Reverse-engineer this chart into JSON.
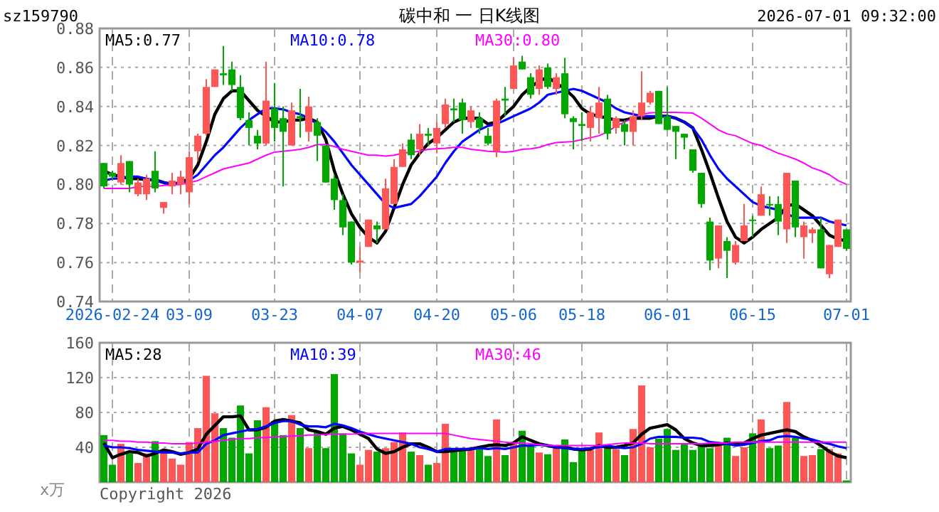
{
  "chart_data": [
    {
      "type": "candlestick",
      "title": "碳中和 一 日K线图",
      "subtitle": "sz159790",
      "annotations": [
        "2026-07-01 09:32:00"
      ],
      "categories": [
        null,
        "2026-02-24",
        null,
        null,
        null,
        null,
        null,
        null,
        null,
        null,
        "03-09",
        null,
        null,
        null,
        null,
        null,
        null,
        null,
        null,
        null,
        "03-23",
        null,
        null,
        null,
        null,
        null,
        null,
        null,
        null,
        null,
        "04-07",
        null,
        null,
        null,
        null,
        null,
        null,
        null,
        null,
        "04-20",
        null,
        null,
        null,
        null,
        null,
        null,
        null,
        null,
        "05-06",
        null,
        null,
        null,
        null,
        null,
        null,
        null,
        "05-18",
        null,
        null,
        null,
        null,
        null,
        null,
        null,
        null,
        null,
        "06-01",
        null,
        null,
        null,
        null,
        null,
        null,
        null,
        null,
        null,
        "06-15",
        null,
        null,
        null,
        null,
        null,
        null,
        null,
        null,
        null,
        null,
        "07-01"
      ],
      "ohlc": [
        [
          0.811,
          0.811,
          0.798,
          0.799
        ],
        [
          0.806,
          0.807,
          0.802,
          0.804
        ],
        [
          0.801,
          0.815,
          0.8,
          0.811
        ],
        [
          0.812,
          0.812,
          0.796,
          0.8
        ],
        [
          0.795,
          0.803,
          0.794,
          0.801
        ],
        [
          0.795,
          0.805,
          0.792,
          0.803
        ],
        [
          0.807,
          0.817,
          0.796,
          0.798
        ],
        [
          0.788,
          0.791,
          0.785,
          0.791
        ],
        [
          0.799,
          0.806,
          0.795,
          0.802
        ],
        [
          0.8,
          0.807,
          0.795,
          0.804
        ],
        [
          0.796,
          0.817,
          0.79,
          0.814
        ],
        [
          0.817,
          0.826,
          0.812,
          0.825
        ],
        [
          0.826,
          0.854,
          0.825,
          0.85
        ],
        [
          0.85,
          0.859,
          0.85,
          0.859
        ],
        [
          0.857,
          0.871,
          0.851,
          0.856
        ],
        [
          0.859,
          0.863,
          0.848,
          0.851
        ],
        [
          0.85,
          0.856,
          0.833,
          0.834
        ],
        [
          0.833,
          0.837,
          0.82,
          0.829
        ],
        [
          0.825,
          0.828,
          0.818,
          0.821
        ],
        [
          0.821,
          0.863,
          0.82,
          0.843
        ],
        [
          0.839,
          0.852,
          0.822,
          0.829
        ],
        [
          0.834,
          0.84,
          0.799,
          0.827
        ],
        [
          0.82,
          0.842,
          0.82,
          0.838
        ],
        [
          0.835,
          0.849,
          0.824,
          0.834
        ],
        [
          0.827,
          0.845,
          0.822,
          0.84
        ],
        [
          0.832,
          0.834,
          0.812,
          0.825
        ],
        [
          0.82,
          0.82,
          0.801,
          0.801
        ],
        [
          0.803,
          0.805,
          0.787,
          0.792
        ],
        [
          0.792,
          0.795,
          0.774,
          0.778
        ],
        [
          0.781,
          0.781,
          0.759,
          0.76
        ],
        [
          0.76,
          0.768,
          0.755,
          0.761
        ],
        [
          0.768,
          0.782,
          0.768,
          0.782
        ],
        [
          0.779,
          0.781,
          0.77,
          0.777
        ],
        [
          0.777,
          0.803,
          0.777,
          0.798
        ],
        [
          0.79,
          0.813,
          0.79,
          0.809
        ],
        [
          0.809,
          0.821,
          0.809,
          0.818
        ],
        [
          0.823,
          0.826,
          0.813,
          0.815
        ],
        [
          0.818,
          0.831,
          0.815,
          0.826
        ],
        [
          0.826,
          0.829,
          0.82,
          0.825
        ],
        [
          0.821,
          0.832,
          0.816,
          0.829
        ],
        [
          0.831,
          0.844,
          0.829,
          0.841
        ],
        [
          0.839,
          0.844,
          0.832,
          0.838
        ],
        [
          0.842,
          0.844,
          0.826,
          0.833
        ],
        [
          0.832,
          0.84,
          0.829,
          0.838
        ],
        [
          0.834,
          0.837,
          0.826,
          0.829
        ],
        [
          0.825,
          0.829,
          0.82,
          0.821
        ],
        [
          0.817,
          0.844,
          0.814,
          0.843
        ],
        [
          0.844,
          0.85,
          0.835,
          0.843
        ],
        [
          0.849,
          0.865,
          0.849,
          0.861
        ],
        [
          0.863,
          0.866,
          0.859,
          0.859
        ],
        [
          0.855,
          0.857,
          0.844,
          0.846
        ],
        [
          0.849,
          0.861,
          0.846,
          0.859
        ],
        [
          0.86,
          0.862,
          0.849,
          0.85
        ],
        [
          0.849,
          0.857,
          0.846,
          0.855
        ],
        [
          0.857,
          0.865,
          0.834,
          0.836
        ],
        [
          0.834,
          0.835,
          0.818,
          0.832
        ],
        [
          0.831,
          0.837,
          0.822,
          0.83
        ],
        [
          0.829,
          0.84,
          0.822,
          0.837
        ],
        [
          0.834,
          0.85,
          0.826,
          0.842
        ],
        [
          0.844,
          0.846,
          0.823,
          0.826
        ],
        [
          0.829,
          0.835,
          0.826,
          0.834
        ],
        [
          0.831,
          0.833,
          0.82,
          0.827
        ],
        [
          0.827,
          0.838,
          0.82,
          0.835
        ],
        [
          0.835,
          0.858,
          0.833,
          0.842
        ],
        [
          0.842,
          0.848,
          0.841,
          0.847
        ],
        [
          0.848,
          0.848,
          0.831,
          0.831
        ],
        [
          0.835,
          0.85,
          0.828,
          0.828
        ],
        [
          0.83,
          0.83,
          0.813,
          0.827
        ],
        [
          0.826,
          0.826,
          0.818,
          0.824
        ],
        [
          0.818,
          0.818,
          0.806,
          0.807
        ],
        [
          0.806,
          0.806,
          0.788,
          0.79
        ],
        [
          0.781,
          0.783,
          0.756,
          0.761
        ],
        [
          0.762,
          0.779,
          0.757,
          0.779
        ],
        [
          0.771,
          0.773,
          0.752,
          0.766
        ],
        [
          0.76,
          0.771,
          0.759,
          0.769
        ],
        [
          0.771,
          0.79,
          0.771,
          0.779
        ],
        [
          0.782,
          0.784,
          0.773,
          0.782
        ],
        [
          0.784,
          0.799,
          0.784,
          0.795
        ],
        [
          0.79,
          0.794,
          0.784,
          0.79
        ],
        [
          0.79,
          0.794,
          0.774,
          0.781
        ],
        [
          0.777,
          0.806,
          0.77,
          0.806
        ],
        [
          0.802,
          0.802,
          0.773,
          0.778
        ],
        [
          0.773,
          0.781,
          0.762,
          0.779
        ],
        [
          0.775,
          0.778,
          0.77,
          0.777
        ],
        [
          0.777,
          0.783,
          0.757,
          0.757
        ],
        [
          0.754,
          0.769,
          0.752,
          0.769
        ],
        [
          0.768,
          0.782,
          0.768,
          0.782
        ],
        [
          0.777,
          0.777,
          0.766,
          0.767
        ]
      ],
      "colors": [
        "#00a800",
        "#00a800",
        "#ff5555",
        "#00a800",
        "#ff5555",
        "#ff5555",
        "#00a800",
        "#ff5555",
        "#ff5555",
        "#ff5555",
        "#ff5555",
        "#ff5555",
        "#ff5555",
        "#ff5555",
        "#00a800",
        "#00a800",
        "#00a800",
        "#00a800",
        "#00a800",
        "#ff5555",
        "#00a800",
        "#00a800",
        "#ff5555",
        "#00a800",
        "#ff5555",
        "#00a800",
        "#00a800",
        "#00a800",
        "#00a800",
        "#00a800",
        "#ff5555",
        "#ff5555",
        "#00a800",
        "#ff5555",
        "#ff5555",
        "#ff5555",
        "#00a800",
        "#ff5555",
        "#00a800",
        "#ff5555",
        "#ff5555",
        "#00a800",
        "#00a800",
        "#ff5555",
        "#00a800",
        "#00a800",
        "#ff5555",
        "#00a800",
        "#ff5555",
        "#00a800",
        "#00a800",
        "#ff5555",
        "#00a800",
        "#ff5555",
        "#00a800",
        "#00a800",
        "#00a800",
        "#ff5555",
        "#ff5555",
        "#00a800",
        "#ff5555",
        "#00a800",
        "#ff5555",
        "#ff5555",
        "#ff5555",
        "#00a800",
        "#00a800",
        "#00a800",
        "#00a800",
        "#00a800",
        "#00a800",
        "#00a800",
        "#ff5555",
        "#00a800",
        "#ff5555",
        "#ff5555",
        "#00a800",
        "#ff5555",
        "#00a800",
        "#00a800",
        "#ff5555",
        "#00a800",
        "#ff5555",
        "#ff5555",
        "#00a800",
        "#ff5555",
        "#ff5555",
        "#00a800"
      ],
      "series": [
        {
          "name": "MA5:0.77",
          "color": "#000000",
          "type": "line",
          "values": [
            0.807,
            0.805,
            0.804,
            0.803,
            0.803,
            0.8025,
            0.8024,
            0.801,
            0.8,
            0.801,
            0.803,
            0.81,
            0.822,
            0.836,
            0.844,
            0.848,
            0.848,
            0.843,
            0.838,
            0.835,
            0.832,
            0.832,
            0.833,
            0.833,
            0.834,
            0.832,
            0.823,
            0.807,
            0.795,
            0.785,
            0.778,
            0.773,
            0.77,
            0.776,
            0.788,
            0.8,
            0.81,
            0.816,
            0.821,
            0.824,
            0.828,
            0.832,
            0.834,
            0.834,
            0.834,
            0.831,
            0.832,
            0.836,
            0.84,
            0.846,
            0.85,
            0.853,
            0.855,
            0.852,
            0.849,
            0.845,
            0.839,
            0.836,
            0.835,
            0.834,
            0.833,
            0.833,
            0.834,
            0.834,
            0.834,
            0.835,
            0.835,
            0.834,
            0.832,
            0.829,
            0.818,
            0.806,
            0.793,
            0.781,
            0.773,
            0.77,
            0.773,
            0.777,
            0.78,
            0.783,
            0.789,
            0.79,
            0.787,
            0.784,
            0.779,
            0.774,
            0.772,
            0.771
          ]
        },
        {
          "name": "MA10:0.78",
          "color": "#0000ff",
          "type": "line",
          "values": [
            0.802,
            0.803,
            0.803,
            0.804,
            0.804,
            0.803,
            0.802,
            0.801,
            0.8005,
            0.801,
            0.802,
            0.805,
            0.81,
            0.815,
            0.819,
            0.824,
            0.829,
            0.833,
            0.836,
            0.839,
            0.839,
            0.8385,
            0.837,
            0.836,
            0.834,
            0.831,
            0.827,
            0.822,
            0.816,
            0.81,
            0.805,
            0.8,
            0.795,
            0.79,
            0.788,
            0.789,
            0.79,
            0.794,
            0.799,
            0.804,
            0.811,
            0.817,
            0.822,
            0.825,
            0.828,
            0.83,
            0.831,
            0.833,
            0.835,
            0.837,
            0.839,
            0.842,
            0.846,
            0.847,
            0.848,
            0.849,
            0.848,
            0.846,
            0.844,
            0.842,
            0.839,
            0.837,
            0.836,
            0.835,
            0.835,
            0.835,
            0.835,
            0.834,
            0.832,
            0.829,
            0.823,
            0.815,
            0.808,
            0.803,
            0.799,
            0.795,
            0.791,
            0.789,
            0.788,
            0.787,
            0.785,
            0.783,
            0.783,
            0.783,
            0.783,
            0.781,
            0.78,
            0.779
          ]
        },
        {
          "name": "MA30:0.80",
          "color": "#ff00ff",
          "type": "line",
          "values": [
            0.798,
            0.798,
            0.798,
            0.798,
            0.799,
            0.799,
            0.799,
            0.7995,
            0.7998,
            0.8,
            0.801,
            0.802,
            0.804,
            0.806,
            0.808,
            0.809,
            0.81,
            0.811,
            0.813,
            0.815,
            0.8166,
            0.817,
            0.8175,
            0.818,
            0.819,
            0.8205,
            0.8205,
            0.8195,
            0.818,
            0.817,
            0.816,
            0.815,
            0.815,
            0.8146,
            0.815,
            0.816,
            0.8166,
            0.817,
            0.818,
            0.8183,
            0.8186,
            0.819,
            0.819,
            0.818,
            0.8176,
            0.817,
            0.8168,
            0.8166,
            0.817,
            0.818,
            0.8183,
            0.819,
            0.8205,
            0.8215,
            0.8218,
            0.822,
            0.823,
            0.824,
            0.825,
            0.827,
            0.83,
            0.832,
            0.834,
            0.836,
            0.8367,
            0.837,
            0.837,
            0.837,
            0.8368,
            0.8366,
            0.834,
            0.831,
            0.828,
            0.826,
            0.825,
            0.823,
            0.821,
            0.82,
            0.818,
            0.816,
            0.8146,
            0.813,
            0.811,
            0.8085,
            0.807,
            0.805,
            0.802,
            0.8
          ]
        }
      ],
      "ylim": [
        0.74,
        0.88
      ],
      "yticks": [
        0.74,
        0.76,
        0.78,
        {
          "value": 0.8,
          "label": "0.80"
        },
        0.82,
        0.84,
        0.86,
        0.88
      ],
      "grid": true,
      "legend": "top"
    },
    {
      "type": "bar",
      "ylabel": "x万",
      "annotations": [
        "Copyright 2026"
      ],
      "categories": [
        null,
        null,
        null,
        null,
        null,
        null,
        null,
        null,
        null,
        null,
        null,
        null,
        null,
        null,
        null,
        null,
        null,
        null,
        null,
        null,
        null,
        null,
        null,
        null,
        null,
        null,
        null,
        null,
        null,
        null,
        null,
        null,
        null,
        null,
        null,
        null,
        null,
        null,
        null,
        null,
        null,
        null,
        null,
        null,
        null,
        null,
        null,
        null,
        null,
        null,
        null,
        null,
        null,
        null,
        null,
        null,
        null,
        null,
        null,
        null,
        null,
        null,
        null,
        null,
        null,
        null,
        null,
        null,
        null,
        null,
        null,
        null,
        null,
        null,
        null,
        null,
        null,
        null,
        null,
        null,
        null,
        null,
        null,
        null,
        null,
        null,
        null,
        null
      ],
      "values": [
        54,
        20,
        44,
        33,
        22,
        33,
        47,
        37,
        27,
        20,
        46,
        62,
        122,
        79,
        62,
        51,
        88,
        33,
        71,
        86,
        70,
        54,
        77,
        62,
        39,
        58,
        39,
        124,
        56,
        33,
        20,
        37,
        35,
        39,
        46,
        57,
        35,
        31,
        20,
        22,
        67,
        39,
        39,
        39,
        38,
        30,
        72,
        31,
        46,
        59,
        42,
        34,
        32,
        39,
        49,
        23,
        37,
        37,
        57,
        42,
        38,
        31,
        61,
        111,
        40,
        50,
        61,
        37,
        44,
        37,
        44,
        39,
        44,
        51,
        30,
        40,
        56,
        72,
        39,
        42,
        92,
        51,
        30,
        31,
        38,
        38,
        33,
        2
      ],
      "colors": [
        "#00a800",
        "#00a800",
        "#ff5555",
        "#00a800",
        "#ff5555",
        "#ff5555",
        "#00a800",
        "#ff5555",
        "#ff5555",
        "#ff5555",
        "#ff5555",
        "#ff5555",
        "#ff5555",
        "#ff5555",
        "#00a800",
        "#00a800",
        "#00a800",
        "#00a800",
        "#00a800",
        "#ff5555",
        "#00a800",
        "#00a800",
        "#ff5555",
        "#00a800",
        "#ff5555",
        "#00a800",
        "#00a800",
        "#00a800",
        "#00a800",
        "#00a800",
        "#ff5555",
        "#ff5555",
        "#00a800",
        "#ff5555",
        "#ff5555",
        "#ff5555",
        "#00a800",
        "#ff5555",
        "#00a800",
        "#ff5555",
        "#ff5555",
        "#00a800",
        "#00a800",
        "#ff5555",
        "#00a800",
        "#00a800",
        "#ff5555",
        "#00a800",
        "#ff5555",
        "#00a800",
        "#00a800",
        "#ff5555",
        "#00a800",
        "#ff5555",
        "#00a800",
        "#00a800",
        "#00a800",
        "#ff5555",
        "#ff5555",
        "#00a800",
        "#ff5555",
        "#00a800",
        "#ff5555",
        "#ff5555",
        "#ff5555",
        "#00a800",
        "#00a800",
        "#00a800",
        "#00a800",
        "#00a800",
        "#00a800",
        "#00a800",
        "#ff5555",
        "#00a800",
        "#ff5555",
        "#ff5555",
        "#00a800",
        "#ff5555",
        "#00a800",
        "#00a800",
        "#ff5555",
        "#00a800",
        "#ff5555",
        "#ff5555",
        "#00a800",
        "#ff5555",
        "#ff5555",
        "#00a800"
      ],
      "series": [
        {
          "name": "MA5:28",
          "color": "#000000",
          "type": "line",
          "values": [
            45,
            28,
            32,
            35,
            34,
            30,
            33,
            37,
            35,
            32,
            34,
            38,
            55,
            65,
            75,
            75,
            76,
            60,
            60,
            63,
            70,
            72,
            70,
            68,
            60,
            58,
            55,
            62,
            64,
            60,
            55,
            50,
            38,
            33,
            35,
            40,
            44,
            44,
            40,
            35,
            35,
            36,
            37,
            38,
            40,
            42,
            43,
            42,
            45,
            52,
            48,
            44,
            42,
            40,
            40,
            38,
            37,
            38,
            42,
            40,
            40,
            42,
            45,
            55,
            62,
            64,
            66,
            60,
            50,
            45,
            42,
            42,
            43,
            45,
            44,
            45,
            50,
            54,
            56,
            58,
            60,
            58,
            52,
            48,
            42,
            35,
            30,
            28
          ]
        },
        {
          "name": "MA10:39",
          "color": "#0000ff",
          "type": "line",
          "values": [
            42,
            40,
            40,
            39,
            37,
            36,
            35,
            34,
            34,
            33,
            34,
            34,
            44,
            48,
            54,
            56,
            58,
            60,
            61,
            64,
            68,
            70,
            70,
            66,
            64,
            64,
            63,
            67,
            65,
            62,
            58,
            55,
            52,
            50,
            48,
            46,
            44,
            40,
            38,
            35,
            38,
            38,
            38,
            38,
            39,
            38,
            39,
            38,
            40,
            42,
            42,
            43,
            42,
            40,
            39,
            38,
            38,
            39,
            40,
            42,
            40,
            39,
            40,
            44,
            50,
            52,
            52,
            52,
            51,
            51,
            50,
            46,
            45,
            44,
            42,
            43,
            45,
            47,
            48,
            52,
            53,
            52,
            50,
            49,
            46,
            44,
            41,
            39
          ]
        },
        {
          "name": "MA30:46",
          "color": "#ff00ff",
          "type": "line",
          "values": [
            48,
            48,
            47,
            47,
            46,
            46,
            45,
            45,
            44,
            44,
            44,
            45,
            46,
            47,
            48,
            49,
            50,
            50,
            51,
            51,
            52,
            52,
            53,
            53,
            54,
            54,
            55,
            55,
            55,
            55,
            56,
            56,
            56,
            56,
            56,
            56,
            56,
            56,
            56,
            56,
            56,
            54,
            52,
            50,
            49,
            48,
            47,
            46,
            45,
            45,
            44,
            43,
            42,
            42,
            42,
            42,
            42,
            42,
            42,
            43,
            44,
            45,
            45,
            45,
            44,
            44,
            44,
            44,
            44,
            44,
            44,
            45,
            45,
            45,
            46,
            46,
            46,
            46,
            46,
            46,
            46,
            46,
            46,
            46,
            46,
            46,
            46,
            46
          ]
        }
      ],
      "ylim": [
        0,
        160
      ],
      "yticks": [
        40,
        80,
        120,
        160
      ],
      "grid": true,
      "legend": "top",
      "tick_labels": "y"
    }
  ]
}
